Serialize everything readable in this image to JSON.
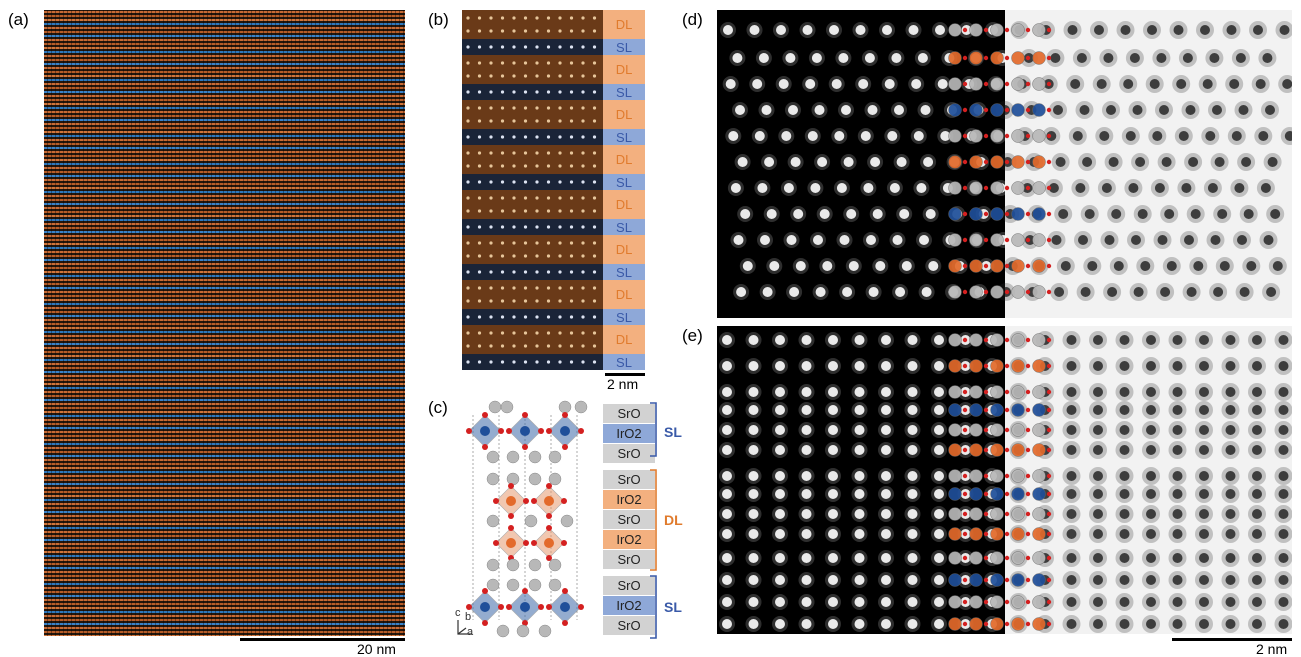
{
  "panels": {
    "a": {
      "label": "(a)",
      "scale_label": "20 nm"
    },
    "b": {
      "label": "(b)",
      "scale_label": "2 nm",
      "tags": [
        "DL",
        "SL",
        "DL",
        "SL",
        "DL",
        "SL",
        "DL",
        "SL",
        "DL",
        "SL",
        "DL",
        "SL",
        "DL",
        "SL",
        "DL",
        "SL"
      ]
    },
    "c": {
      "label": "(c)",
      "stack": [
        "SrO",
        "IrO2",
        "SrO",
        "SrO",
        "IrO2",
        "SrO",
        "IrO2",
        "SrO",
        "SrO",
        "IrO2",
        "SrO"
      ],
      "group_labels": [
        "SL",
        "DL",
        "SL"
      ],
      "axes": {
        "c": "c",
        "b": "b",
        "a": "a"
      }
    },
    "d": {
      "label": "(d)"
    },
    "e": {
      "label": "(e)",
      "scale_label": "2 nm"
    }
  },
  "colors": {
    "sl": "#8ea8d8",
    "dl": "#f3b07f",
    "sl_text": "#3a5aa8",
    "dl_text": "#e07b2d",
    "oxygen": "#d42020",
    "iridium_sl": "#1f4f9a",
    "iridium_dl": "#e36a2b",
    "strontium": "#b8b8b8"
  }
}
